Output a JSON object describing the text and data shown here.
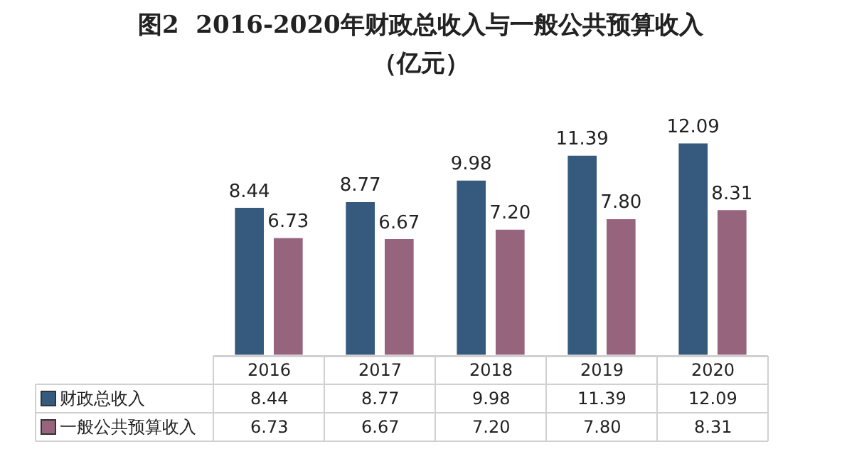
{
  "chart_data": {
    "type": "bar",
    "title": "图2  2016-2020年财政总收入与一般公共预算收入",
    "subtitle": "（亿元）",
    "categories": [
      "2016",
      "2017",
      "2018",
      "2019",
      "2020"
    ],
    "series": [
      {
        "name": "财政总收入",
        "color": "#365a7e",
        "values": [
          8.44,
          8.77,
          9.98,
          11.39,
          12.09
        ],
        "value_labels": [
          "8.44",
          "8.77",
          "9.98",
          "11.39",
          "12.09"
        ]
      },
      {
        "name": "一般公共预算收入",
        "color": "#97647e",
        "values": [
          6.73,
          6.67,
          7.2,
          7.8,
          8.31
        ],
        "value_labels": [
          "6.73",
          "6.67",
          "7.20",
          "7.80",
          "8.31"
        ]
      }
    ],
    "relative": false,
    "legend": "bottom left"
  }
}
